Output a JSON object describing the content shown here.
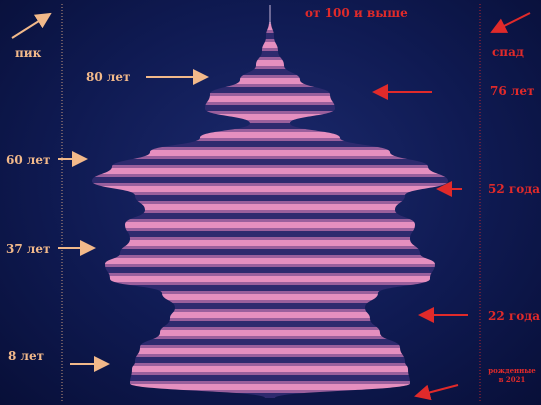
{
  "chart_data": {
    "type": "population-pyramid",
    "top_label": "от 100 и выше",
    "left_annotations": [
      {
        "text": "пик",
        "age": 104
      },
      {
        "text": "80 лет",
        "age": 80
      },
      {
        "text": "60 лет",
        "age": 60
      },
      {
        "text": "37 лет",
        "age": 37
      },
      {
        "text": "8 лет",
        "age": 8
      }
    ],
    "right_annotations": [
      {
        "text": "спад",
        "age": 104
      },
      {
        "text": "76 лет",
        "age": 76
      },
      {
        "text": "52 года",
        "age": 52
      },
      {
        "text": "22 года",
        "age": 22
      },
      {
        "text": "рожденные в 2021",
        "age": 0
      }
    ],
    "ages": [
      104,
      100,
      96,
      92,
      88,
      84,
      80,
      76,
      72,
      68,
      64,
      60,
      56,
      52,
      48,
      44,
      40,
      37,
      33,
      29,
      25,
      22,
      18,
      14,
      10,
      8,
      4,
      0
    ],
    "half_width": [
      1,
      4,
      8,
      14,
      30,
      60,
      65,
      20,
      70,
      120,
      158,
      178,
      135,
      125,
      145,
      140,
      150,
      165,
      160,
      108,
      95,
      100,
      110,
      130,
      135,
      138,
      140,
      5
    ],
    "colors": {
      "dark": "#2e2a6e",
      "light": "#e58fbf",
      "mid": "#9a5f9c",
      "left_accent": "#f2b98a",
      "right_accent": "#e02a2a"
    }
  }
}
